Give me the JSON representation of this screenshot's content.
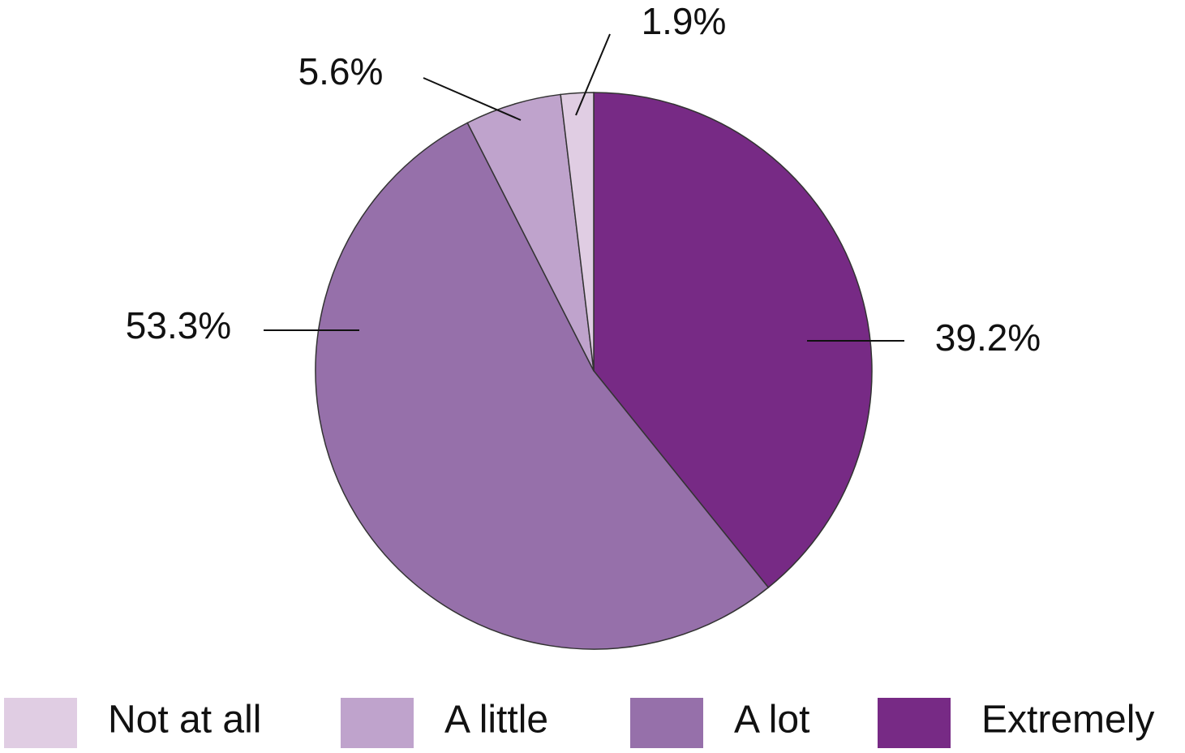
{
  "chart_data": {
    "type": "pie",
    "categories": [
      "Not at all",
      "A little",
      "A lot",
      "Extremely"
    ],
    "values": [
      1.9,
      5.6,
      53.3,
      39.2
    ],
    "value_labels": [
      "1.9%",
      "5.6%",
      "53.3%",
      "39.2%"
    ],
    "colors": [
      "#e0cde3",
      "#bfa3cc",
      "#9670aa",
      "#772a85"
    ],
    "legend": "bottom"
  }
}
